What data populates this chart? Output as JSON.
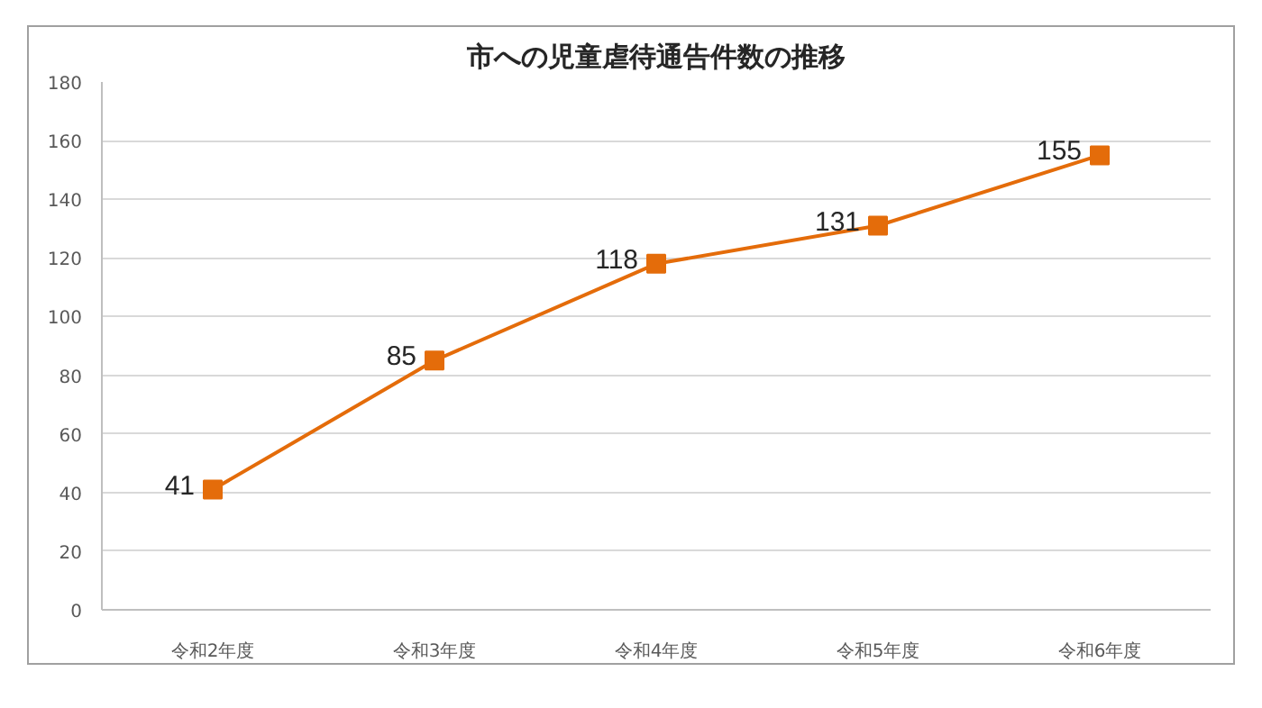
{
  "chart_data": {
    "type": "line",
    "title": "市への児童虐待通告件数の推移",
    "categories": [
      "令和2年度",
      "令和3年度",
      "令和4年度",
      "令和5年度",
      "令和6年度"
    ],
    "series": [
      {
        "color": "#e46c0a",
        "values": [
          41,
          85,
          118,
          131,
          155
        ]
      }
    ],
    "ylim": [
      0,
      180
    ],
    "yticks": [
      0,
      20,
      40,
      60,
      80,
      100,
      120,
      140,
      160,
      180
    ],
    "grid": "y",
    "marker": "square",
    "line_style": "solid",
    "data_labels": true
  }
}
